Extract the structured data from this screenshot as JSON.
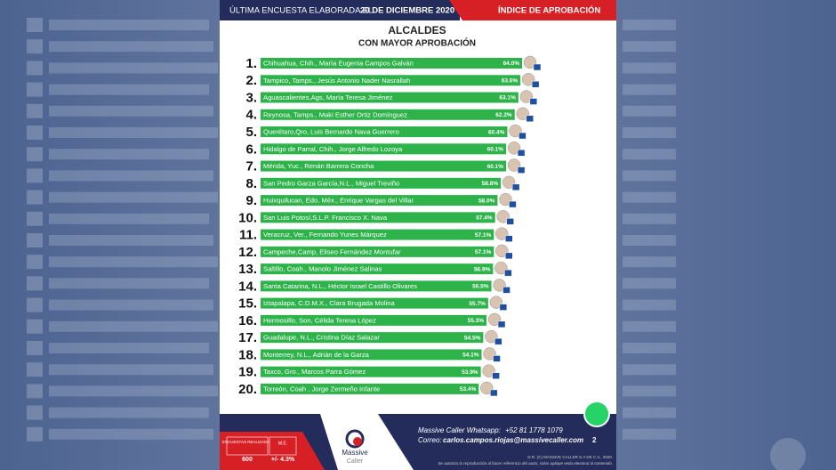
{
  "header": {
    "survey_date_label": "ÚLTIMA ENCUESTA ELABORADA EL",
    "survey_date": "20 DE DICIEMBRE 2020",
    "section": "ÍNDICE DE APROBACIÓN"
  },
  "chart_data": {
    "type": "bar",
    "title": "ALCALDES",
    "subtitle": "CON MAYOR APROBACIÓN",
    "color": "#2db34a",
    "ranks": [
      "1.",
      "2.",
      "3.",
      "4.",
      "5.",
      "6.",
      "7.",
      "8.",
      "9.",
      "10.",
      "11.",
      "12.",
      "13.",
      "14.",
      "15.",
      "16.",
      "17.",
      "18.",
      "19.",
      "20."
    ],
    "categories": [
      "Chihuahua, Chih., María Eugenia Campos Galván",
      "Tampico, Tamps., Jesús Antonio Nader Nasrallah",
      "Aguascalientes,Ags, María Teresa Jiménez",
      "Reynosa, Tamps., Maki Esther Ortiz Domínguez",
      "Querétaro,Qro, Luis Bernardo Nava Guerrero",
      "Hidalgo de Parral, Chih., Jorge Alfredo Lozoya",
      "Mérida, Yuc., Renán Barrera Concha",
      "San Pedro Garza García,N.L., Miguel Treviño",
      "Huixquilucan, Edo. Méx., Enrique Vargas del Villar",
      "San Luis Potosí,S.L.P. Francisco X. Nava",
      "Veracruz, Ver., Fernando Yunes Márquez",
      "Campeche,Camp, Eliseo Fernández Montufar",
      "Saltillo, Coah., Manolo Jiménez Salinas",
      "Santa Catarina, N.L., Héctor Israel Castillo Olivares",
      "Iztapalapa, C.D.M.X., Clara Brugada Molina",
      "Hermosillo, Son, Célida Teresa López",
      "Guadalupe, N.L., Cristina Díaz Salazar",
      "Monterrey, N.L., Adrián de la Garza",
      "Taxco, Gro., Marcos Parra Gómez",
      "Torreón, Coah , Jorge Zermeño Infante"
    ],
    "values": [
      64.0,
      63.6,
      63.1,
      62.2,
      60.4,
      60.1,
      60.1,
      58.8,
      58.0,
      57.4,
      57.1,
      57.1,
      56.9,
      56.5,
      55.7,
      55.3,
      54.5,
      54.1,
      53.9,
      53.4
    ],
    "value_labels": [
      "64.0%",
      "63.6%",
      "63.1%",
      "62.2%",
      "60.4%",
      "60.1%",
      "60.1%",
      "58.8%",
      "58.0%",
      "57.4%",
      "57.1%",
      "57.1%",
      "56.9%",
      "56.5%",
      "55.7%",
      "55.3%",
      "54.5%",
      "54.1%",
      "53.9%",
      "53.4%"
    ]
  },
  "footer": {
    "surveys_label": "ENCUESTAS REALIZADAS",
    "surveys": "600",
    "me_label": "M.E.",
    "me": "+/- 4.3%",
    "logo_top": "Massive",
    "logo_bottom": "Caller",
    "whatsapp_label": "Massive Caller Whatsapp:",
    "whatsapp": "+52 81 1778 1079",
    "email_label": "Correo:",
    "email": "carlos.campos.riojas@massivecaller.com",
    "page": "2",
    "copyright": "D.R. (C) MASSIVE CALLER S.A DE C.V., 2020.",
    "disclaimer": "Se autoriza la reproducción al hacer referencia del autor, salvo aplique veda electoral al contenido."
  }
}
